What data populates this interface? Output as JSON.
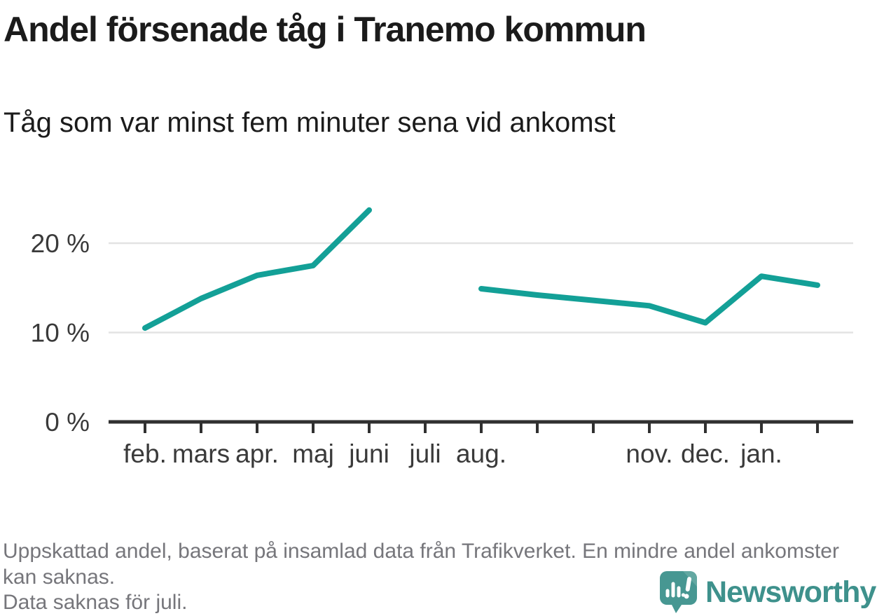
{
  "header": {
    "title": "Andel försenade tåg i Tranemo kommun",
    "subtitle": "Tåg som var minst fem minuter sena vid ankomst"
  },
  "chart_data": {
    "type": "line",
    "title": "Andel försenade tåg i Tranemo kommun",
    "subtitle": "Tåg som var minst fem minuter sena vid ankomst",
    "unit": "%",
    "x_tick_labels": [
      "feb.",
      "mars",
      "apr.",
      "maj",
      "juni",
      "juli",
      "aug.",
      "",
      "",
      "nov.",
      "dec.",
      "jan.",
      ""
    ],
    "values": [
      10.5,
      13.8,
      16.4,
      17.5,
      23.7,
      null,
      14.9,
      14.2,
      13.6,
      13.0,
      11.1,
      16.3,
      15.3
    ],
    "missing_note": "Data saknas för juli.",
    "ylim": [
      0,
      25
    ],
    "yticks": [
      0,
      10,
      20
    ],
    "ytick_labels": [
      "0 %",
      "10 %",
      "20 %"
    ],
    "grid": true,
    "legend": "none",
    "colors": {
      "line": "#13a097",
      "axis": "#303030",
      "axis_text": "#3a3a3a",
      "gridline": "#e3e3e3"
    }
  },
  "footer": {
    "note": "Uppskattad andel, baserat på insamlad data från Trafikverket. En mindre andel ankomster kan saknas.",
    "note2": "Data saknas för juli.",
    "logo_text": "Newsworthy",
    "logo_color": "#3e918c",
    "logo_icon_color": "#479792"
  }
}
